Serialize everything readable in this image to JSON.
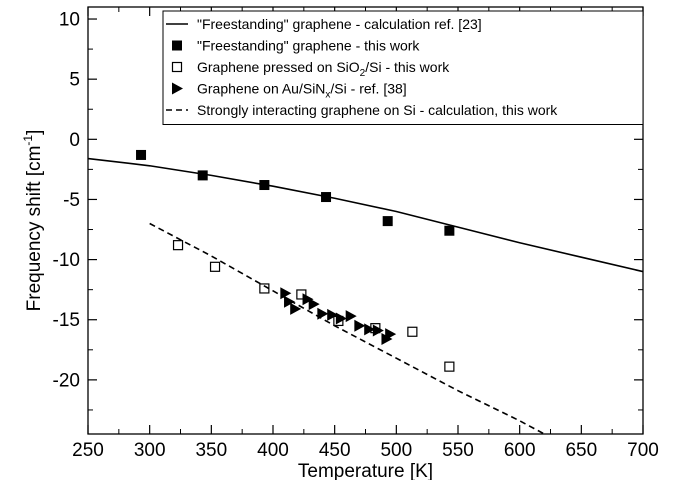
{
  "chart_data": {
    "type": "scatter",
    "title": "",
    "xlabel": "Temperature [K]",
    "ylabel_main": "Frequency shift [cm",
    "ylabel_sup": "-1",
    "ylabel_end": "]",
    "xlim": [
      250,
      700
    ],
    "ylim": [
      -24.5,
      11
    ],
    "xticks": [
      250,
      300,
      350,
      400,
      450,
      500,
      550,
      600,
      650,
      700
    ],
    "yticks": [
      10,
      5,
      0,
      -5,
      -10,
      -15,
      -20
    ],
    "xtick_labels": [
      "250",
      "300",
      "350",
      "400",
      "450",
      "500",
      "550",
      "600",
      "650",
      "700"
    ],
    "ytick_labels": [
      "10",
      "5",
      "0",
      "-5",
      "-10",
      "-15",
      "-20"
    ],
    "grid": false,
    "legend_position": "top-right",
    "series": [
      {
        "key": "calc_freestanding",
        "style": "solid-line",
        "legend": {
          "pre": "\"Freestanding\" graphene - calculation ref. [23]"
        },
        "x": [
          250,
          300,
          350,
          400,
          450,
          500,
          550,
          600,
          650,
          700
        ],
        "y": [
          -1.6,
          -2.2,
          -3.0,
          -3.9,
          -4.9,
          -6.0,
          -7.3,
          -8.6,
          -9.8,
          -11.0
        ]
      },
      {
        "key": "freestanding_this_work",
        "style": "filled-square",
        "legend": {
          "pre": "\"Freestanding\" graphene - this work"
        },
        "x": [
          293,
          343,
          393,
          443,
          493,
          543
        ],
        "y": [
          -1.3,
          -3.0,
          -3.8,
          -4.8,
          -6.8,
          -7.6
        ]
      },
      {
        "key": "pressed_sio2",
        "style": "open-square",
        "legend": {
          "pre": "Graphene pressed on SiO",
          "sub": "2",
          "post": "/Si - this work"
        },
        "x": [
          323,
          353,
          393,
          423,
          453,
          483,
          513,
          543
        ],
        "y": [
          -8.8,
          -10.6,
          -12.4,
          -12.9,
          -15.1,
          -15.7,
          -16.0,
          -18.9
        ]
      },
      {
        "key": "au_sinx",
        "style": "filled-triangle",
        "legend": {
          "pre": "Graphene on Au/SiN",
          "sub": "x",
          "post": "/Si - ref. [38]"
        },
        "x": [
          410,
          413,
          418,
          428,
          433,
          440,
          448,
          455,
          463,
          470,
          478,
          485,
          492,
          495
        ],
        "y": [
          -12.8,
          -13.5,
          -14.1,
          -13.3,
          -13.7,
          -14.5,
          -14.6,
          -14.9,
          -14.7,
          -15.5,
          -15.8,
          -15.9,
          -16.6,
          -16.2
        ]
      },
      {
        "key": "strong_si",
        "style": "dashed-line",
        "legend": {
          "pre": "Strongly interacting graphene on Si - calculation, this work"
        },
        "x": [
          300,
          350,
          400,
          450,
          500,
          550,
          600,
          620
        ],
        "y": [
          -7.0,
          -9.7,
          -12.6,
          -15.5,
          -18.2,
          -20.9,
          -23.4,
          -24.5
        ]
      }
    ]
  }
}
